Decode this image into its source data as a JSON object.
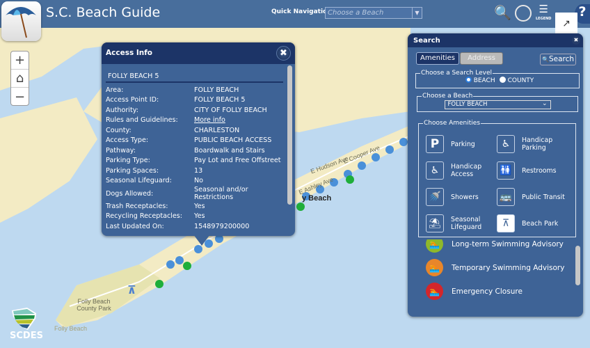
{
  "header": {
    "title": "S.C. Beach Guide",
    "quick_nav_label": "Quick Navigation",
    "quick_nav_placeholder": "Choose a Beach",
    "legend_label": "LEGEND"
  },
  "map": {
    "labels": [
      "Folly Beach County Park",
      "Folly Beach",
      "E Hudson Ave",
      "E Cooper Ave",
      "E Ashley Ave",
      "y Beach"
    ],
    "water_color": "#bed9f0",
    "land_color": "#f3ebc4"
  },
  "access_info": {
    "title": "Access Info",
    "name": "FOLLY BEACH 5",
    "rows": [
      {
        "k": "Area:",
        "v": "FOLLY BEACH"
      },
      {
        "k": "Access Point ID:",
        "v": "FOLLY BEACH 5"
      },
      {
        "k": "Authority:",
        "v": "CITY OF FOLLY BEACH"
      },
      {
        "k": "Rules and Guidelines:",
        "v": "More info",
        "link": true
      },
      {
        "k": "County:",
        "v": "CHARLESTON"
      },
      {
        "k": "Access Type:",
        "v": "PUBLIC BEACH ACCESS"
      },
      {
        "k": "Pathway:",
        "v": "Boardwalk and Stairs"
      },
      {
        "k": "Parking Type:",
        "v": "Pay Lot and Free Offstreet"
      },
      {
        "k": "Parking Spaces:",
        "v": "13"
      },
      {
        "k": "Seasonal Lifeguard:",
        "v": "No"
      },
      {
        "k": "Dogs Allowed:",
        "v": "Seasonal and/or Restrictions"
      },
      {
        "k": "Trash Receptacles:",
        "v": "Yes"
      },
      {
        "k": "Recycling Receptacles:",
        "v": "Yes"
      },
      {
        "k": "Last Updated On:",
        "v": "1548979200000"
      }
    ]
  },
  "search": {
    "title": "Search",
    "tabs": [
      "Amenities",
      "Address"
    ],
    "search_button": "Search",
    "level_legend": "Choose a Search Level",
    "level_options": [
      "BEACH",
      "COUNTY"
    ],
    "level_selected": "BEACH",
    "beach_legend": "Choose a Beach",
    "beach_selected": "FOLLY BEACH",
    "amenities_legend": "Choose Amenities",
    "amenities": [
      {
        "label": "Parking",
        "icon": "parking-icon"
      },
      {
        "label": "Handicap Parking",
        "icon": "handicap-parking-icon"
      },
      {
        "label": "Handicap Access",
        "icon": "wheelchair-icon"
      },
      {
        "label": "Restrooms",
        "icon": "restroom-icon"
      },
      {
        "label": "Showers",
        "icon": "shower-icon"
      },
      {
        "label": "Public Transit",
        "icon": "bus-icon"
      },
      {
        "label": "Seasonal Lifeguard",
        "icon": "lifeguard-icon"
      },
      {
        "label": "Beach Park",
        "icon": "picnic-table-icon",
        "selected": true
      }
    ],
    "legend_items": [
      {
        "label": "Long-term Swimming Advisory",
        "color": "#8fb82a"
      },
      {
        "label": "Temporary Swimming Advisory",
        "color": "#e8862a"
      },
      {
        "label": "Emergency Closure",
        "color": "#d3262b"
      }
    ]
  },
  "footer": {
    "logo_text": "SCDES"
  }
}
